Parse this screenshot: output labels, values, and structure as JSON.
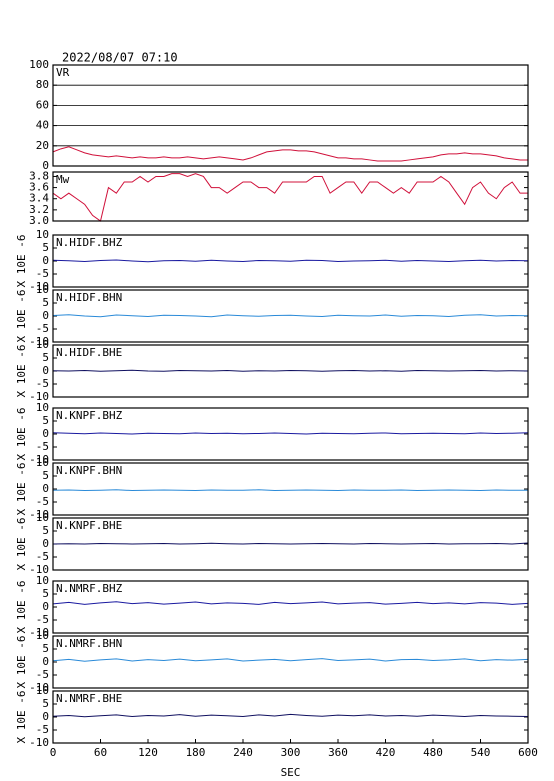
{
  "chart_data": [
    {
      "type": "line",
      "title": "2022/08/07 07:10",
      "label": "VR",
      "color": "#d0103a",
      "grid": true,
      "xlim": [
        0,
        600
      ],
      "ylim": [
        0,
        100
      ],
      "yticks": [
        0,
        20,
        40,
        60,
        80,
        100
      ],
      "x": [
        0,
        10,
        20,
        30,
        40,
        50,
        60,
        70,
        80,
        90,
        100,
        110,
        120,
        130,
        140,
        150,
        160,
        170,
        180,
        190,
        200,
        210,
        220,
        230,
        240,
        250,
        260,
        270,
        280,
        290,
        300,
        310,
        320,
        330,
        340,
        350,
        360,
        370,
        380,
        390,
        400,
        410,
        420,
        430,
        440,
        450,
        460,
        470,
        480,
        490,
        500,
        510,
        520,
        530,
        540,
        550,
        560,
        570,
        580,
        590,
        600
      ],
      "values": [
        14,
        17,
        19,
        16,
        13,
        11,
        10,
        9,
        10,
        9,
        8,
        9,
        8,
        8,
        9,
        8,
        8,
        9,
        8,
        7,
        8,
        9,
        8,
        7,
        6,
        8,
        11,
        14,
        15,
        16,
        16,
        15,
        15,
        14,
        12,
        10,
        8,
        8,
        7,
        7,
        6,
        5,
        5,
        5,
        5,
        6,
        7,
        8,
        9,
        11,
        12,
        12,
        13,
        12,
        12,
        11,
        10,
        8,
        7,
        6,
        6
      ]
    },
    {
      "type": "line",
      "label": "Mw",
      "color": "#d0103a",
      "grid": false,
      "xlim": [
        0,
        600
      ],
      "ylim": [
        3.0,
        3.88
      ],
      "yticks": [
        {
          "value": 3.0,
          "label": "3.0"
        },
        3.2,
        3.4,
        3.6,
        3.8
      ],
      "x": [
        0,
        10,
        20,
        30,
        40,
        50,
        60,
        70,
        80,
        90,
        100,
        110,
        120,
        130,
        140,
        150,
        160,
        170,
        180,
        190,
        200,
        210,
        220,
        230,
        240,
        250,
        260,
        270,
        280,
        290,
        300,
        310,
        320,
        330,
        340,
        350,
        360,
        370,
        380,
        390,
        400,
        410,
        420,
        430,
        440,
        450,
        460,
        470,
        480,
        490,
        500,
        510,
        520,
        530,
        540,
        550,
        560,
        570,
        580,
        590,
        600
      ],
      "values": [
        3.5,
        3.4,
        3.5,
        3.4,
        3.3,
        3.1,
        3.0,
        3.6,
        3.5,
        3.7,
        3.7,
        3.8,
        3.7,
        3.8,
        3.8,
        3.85,
        3.85,
        3.8,
        3.85,
        3.8,
        3.6,
        3.6,
        3.5,
        3.6,
        3.7,
        3.7,
        3.6,
        3.6,
        3.5,
        3.7,
        3.7,
        3.7,
        3.7,
        3.8,
        3.8,
        3.5,
        3.6,
        3.7,
        3.7,
        3.5,
        3.7,
        3.7,
        3.6,
        3.5,
        3.6,
        3.5,
        3.7,
        3.7,
        3.7,
        3.8,
        3.7,
        3.5,
        3.3,
        3.6,
        3.7,
        3.5,
        3.4,
        3.6,
        3.7,
        3.5,
        3.5
      ]
    },
    {
      "type": "line",
      "label": "N.HIDF.BHZ",
      "ylabel": "X 10E -6",
      "color": "#1a1aa0",
      "grid": false,
      "xlim": [
        0,
        600
      ],
      "ylim": [
        -10,
        10
      ],
      "yticks": [
        -10,
        -5,
        0,
        5,
        10
      ],
      "x": [
        0,
        20,
        40,
        60,
        80,
        100,
        120,
        140,
        160,
        180,
        200,
        220,
        240,
        260,
        280,
        300,
        320,
        340,
        360,
        380,
        400,
        420,
        440,
        460,
        480,
        500,
        520,
        540,
        560,
        580,
        600
      ],
      "values": [
        0.3,
        0.1,
        -0.2,
        0.2,
        0.4,
        0,
        -0.3,
        0.1,
        0.2,
        -0.1,
        0.3,
        0,
        -0.2,
        0.2,
        0.1,
        -0.1,
        0.3,
        0.2,
        -0.2,
        0,
        0.1,
        0.3,
        -0.1,
        0.2,
        0,
        -0.2,
        0.1,
        0.3,
        0,
        0.2,
        0.1
      ]
    },
    {
      "type": "line",
      "label": "N.HIDF.BHN",
      "ylabel": "X 10E -6",
      "color": "#2a8ad8",
      "grid": false,
      "xlim": [
        0,
        600
      ],
      "ylim": [
        -10,
        10
      ],
      "yticks": [
        -10,
        -5,
        0,
        5,
        10
      ],
      "x": [
        0,
        20,
        40,
        60,
        80,
        100,
        120,
        140,
        160,
        180,
        200,
        220,
        240,
        260,
        280,
        300,
        320,
        340,
        360,
        380,
        400,
        420,
        440,
        460,
        480,
        500,
        520,
        540,
        560,
        580,
        600
      ],
      "values": [
        0.2,
        0.5,
        0,
        -0.3,
        0.4,
        0.1,
        -0.2,
        0.3,
        0.2,
        0,
        -0.3,
        0.4,
        0.1,
        -0.1,
        0.2,
        0.3,
        0,
        -0.2,
        0.3,
        0.1,
        0,
        0.4,
        -0.1,
        0.2,
        0.1,
        -0.2,
        0.3,
        0.5,
        0,
        0.2,
        0.1
      ]
    },
    {
      "type": "line",
      "label": "N.HIDF.BHE",
      "ylabel": "X 10E -6",
      "color": "#101060",
      "grid": false,
      "xlim": [
        0,
        600
      ],
      "ylim": [
        -10,
        10
      ],
      "yticks": [
        -10,
        -5,
        0,
        5,
        10
      ],
      "x": [
        0,
        20,
        40,
        60,
        80,
        100,
        120,
        140,
        160,
        180,
        200,
        220,
        240,
        260,
        280,
        300,
        320,
        340,
        360,
        380,
        400,
        420,
        440,
        460,
        480,
        500,
        520,
        540,
        560,
        580,
        600
      ],
      "values": [
        0.1,
        0,
        0.2,
        -0.1,
        0.1,
        0.3,
        0,
        -0.1,
        0.2,
        0.1,
        0,
        0.2,
        -0.1,
        0.1,
        0,
        0.2,
        0.1,
        -0.1,
        0.1,
        0.2,
        0,
        0.1,
        -0.1,
        0.2,
        0.1,
        0,
        0.1,
        0.2,
        0,
        0.1,
        0
      ]
    },
    {
      "type": "line",
      "label": "N.KNPF.BHZ",
      "ylabel": "X 10E -6",
      "color": "#1a1aa0",
      "grid": false,
      "xlim": [
        0,
        600
      ],
      "ylim": [
        -10,
        10
      ],
      "yticks": [
        -10,
        -5,
        0,
        5,
        10
      ],
      "x": [
        0,
        20,
        40,
        60,
        80,
        100,
        120,
        140,
        160,
        180,
        200,
        220,
        240,
        260,
        280,
        300,
        320,
        340,
        360,
        380,
        400,
        420,
        440,
        460,
        480,
        500,
        520,
        540,
        560,
        580,
        600
      ],
      "values": [
        0.5,
        0.3,
        0.1,
        0.4,
        0.2,
        0,
        0.3,
        0.2,
        0.1,
        0.4,
        0.2,
        0.3,
        0.1,
        0.2,
        0.4,
        0.2,
        0,
        0.3,
        0.2,
        0.1,
        0.3,
        0.4,
        0.1,
        0.2,
        0.3,
        0.2,
        0.1,
        0.4,
        0.2,
        0.3,
        0.5
      ]
    },
    {
      "type": "line",
      "label": "N.KNPF.BHN",
      "ylabel": "X 10E -6",
      "color": "#2a8ad8",
      "grid": false,
      "xlim": [
        0,
        600
      ],
      "ylim": [
        -10,
        10
      ],
      "yticks": [
        -10,
        -5,
        0,
        5,
        10
      ],
      "x": [
        0,
        20,
        40,
        60,
        80,
        100,
        120,
        140,
        160,
        180,
        200,
        220,
        240,
        260,
        280,
        300,
        320,
        340,
        360,
        380,
        400,
        420,
        440,
        460,
        480,
        500,
        520,
        540,
        560,
        580,
        600
      ],
      "values": [
        -0.5,
        -0.4,
        -0.6,
        -0.5,
        -0.3,
        -0.6,
        -0.5,
        -0.4,
        -0.5,
        -0.6,
        -0.4,
        -0.5,
        -0.5,
        -0.3,
        -0.6,
        -0.5,
        -0.4,
        -0.5,
        -0.6,
        -0.4,
        -0.5,
        -0.5,
        -0.4,
        -0.6,
        -0.5,
        -0.4,
        -0.5,
        -0.6,
        -0.4,
        -0.5,
        -0.5
      ]
    },
    {
      "type": "line",
      "label": "N.KNPF.BHE",
      "ylabel": "X 10E -6",
      "color": "#101060",
      "grid": false,
      "xlim": [
        0,
        600
      ],
      "ylim": [
        -10,
        10
      ],
      "yticks": [
        -10,
        -5,
        0,
        5,
        10
      ],
      "x": [
        0,
        20,
        40,
        60,
        80,
        100,
        120,
        140,
        160,
        180,
        200,
        220,
        240,
        260,
        280,
        300,
        320,
        340,
        360,
        380,
        400,
        420,
        440,
        460,
        480,
        500,
        520,
        540,
        560,
        580,
        600
      ],
      "values": [
        0,
        0.1,
        0,
        0.2,
        0.1,
        0,
        0.1,
        0.2,
        0,
        0.1,
        0.3,
        0.1,
        0,
        0.2,
        0.1,
        0,
        0.1,
        0.2,
        0.1,
        0,
        0.2,
        0.1,
        0,
        0.1,
        0.2,
        0,
        0.1,
        0.1,
        0.2,
        0,
        0.4
      ]
    },
    {
      "type": "line",
      "label": "N.NMRF.BHZ",
      "ylabel": "X 10E -6",
      "color": "#1a1aa0",
      "grid": false,
      "xlim": [
        0,
        600
      ],
      "ylim": [
        -10,
        10
      ],
      "yticks": [
        -10,
        -5,
        0,
        5,
        10
      ],
      "x": [
        0,
        20,
        40,
        60,
        80,
        100,
        120,
        140,
        160,
        180,
        200,
        220,
        240,
        260,
        280,
        300,
        320,
        340,
        360,
        380,
        400,
        420,
        440,
        460,
        480,
        500,
        520,
        540,
        560,
        580,
        600
      ],
      "values": [
        1.2,
        1.8,
        1.0,
        1.6,
        2.0,
        1.3,
        1.7,
        1.1,
        1.5,
        1.9,
        1.2,
        1.6,
        1.4,
        1.0,
        1.8,
        1.3,
        1.6,
        1.9,
        1.2,
        1.5,
        1.7,
        1.1,
        1.4,
        1.8,
        1.3,
        1.6,
        1.2,
        1.7,
        1.5,
        1.0,
        1.4
      ]
    },
    {
      "type": "line",
      "label": "N.NMRF.BHN",
      "ylabel": "X 10E -6",
      "color": "#2a8ad8",
      "grid": false,
      "xlim": [
        0,
        600
      ],
      "ylim": [
        -10,
        10
      ],
      "yticks": [
        -10,
        -5,
        0,
        5,
        10
      ],
      "x": [
        0,
        20,
        40,
        60,
        80,
        100,
        120,
        140,
        160,
        180,
        200,
        220,
        240,
        260,
        280,
        300,
        320,
        340,
        360,
        380,
        400,
        420,
        440,
        460,
        480,
        500,
        520,
        540,
        560,
        580,
        600
      ],
      "values": [
        0.5,
        1.0,
        0.3,
        0.8,
        1.2,
        0.4,
        0.9,
        0.6,
        1.1,
        0.5,
        0.8,
        1.2,
        0.4,
        0.7,
        1.0,
        0.5,
        0.9,
        1.3,
        0.6,
        0.8,
        1.1,
        0.4,
        0.9,
        1.0,
        0.6,
        0.8,
        1.2,
        0.5,
        0.9,
        0.7,
        1.0
      ]
    },
    {
      "type": "line",
      "label": "N.NMRF.BHE",
      "ylabel": "X 10E -6",
      "color": "#101060",
      "grid": false,
      "xlim": [
        0,
        600
      ],
      "ylim": [
        -10,
        10
      ],
      "yticks": [
        -10,
        -5,
        0,
        5,
        10
      ],
      "xticks": [
        0,
        60,
        120,
        180,
        240,
        300,
        360,
        420,
        480,
        540,
        600
      ],
      "xlabel": "SEC",
      "x": [
        0,
        20,
        40,
        60,
        80,
        100,
        120,
        140,
        160,
        180,
        200,
        220,
        240,
        260,
        280,
        300,
        320,
        340,
        360,
        380,
        400,
        420,
        440,
        460,
        480,
        500,
        520,
        540,
        560,
        580,
        600
      ],
      "values": [
        0.3,
        0.6,
        0.1,
        0.5,
        0.8,
        0.2,
        0.6,
        0.4,
        0.9,
        0.3,
        0.7,
        0.5,
        0.2,
        0.8,
        0.4,
        1.0,
        0.6,
        0.3,
        0.7,
        0.5,
        0.8,
        0.4,
        0.6,
        0.3,
        0.7,
        0.5,
        0.2,
        0.6,
        0.4,
        0.3,
        0.2
      ]
    }
  ]
}
